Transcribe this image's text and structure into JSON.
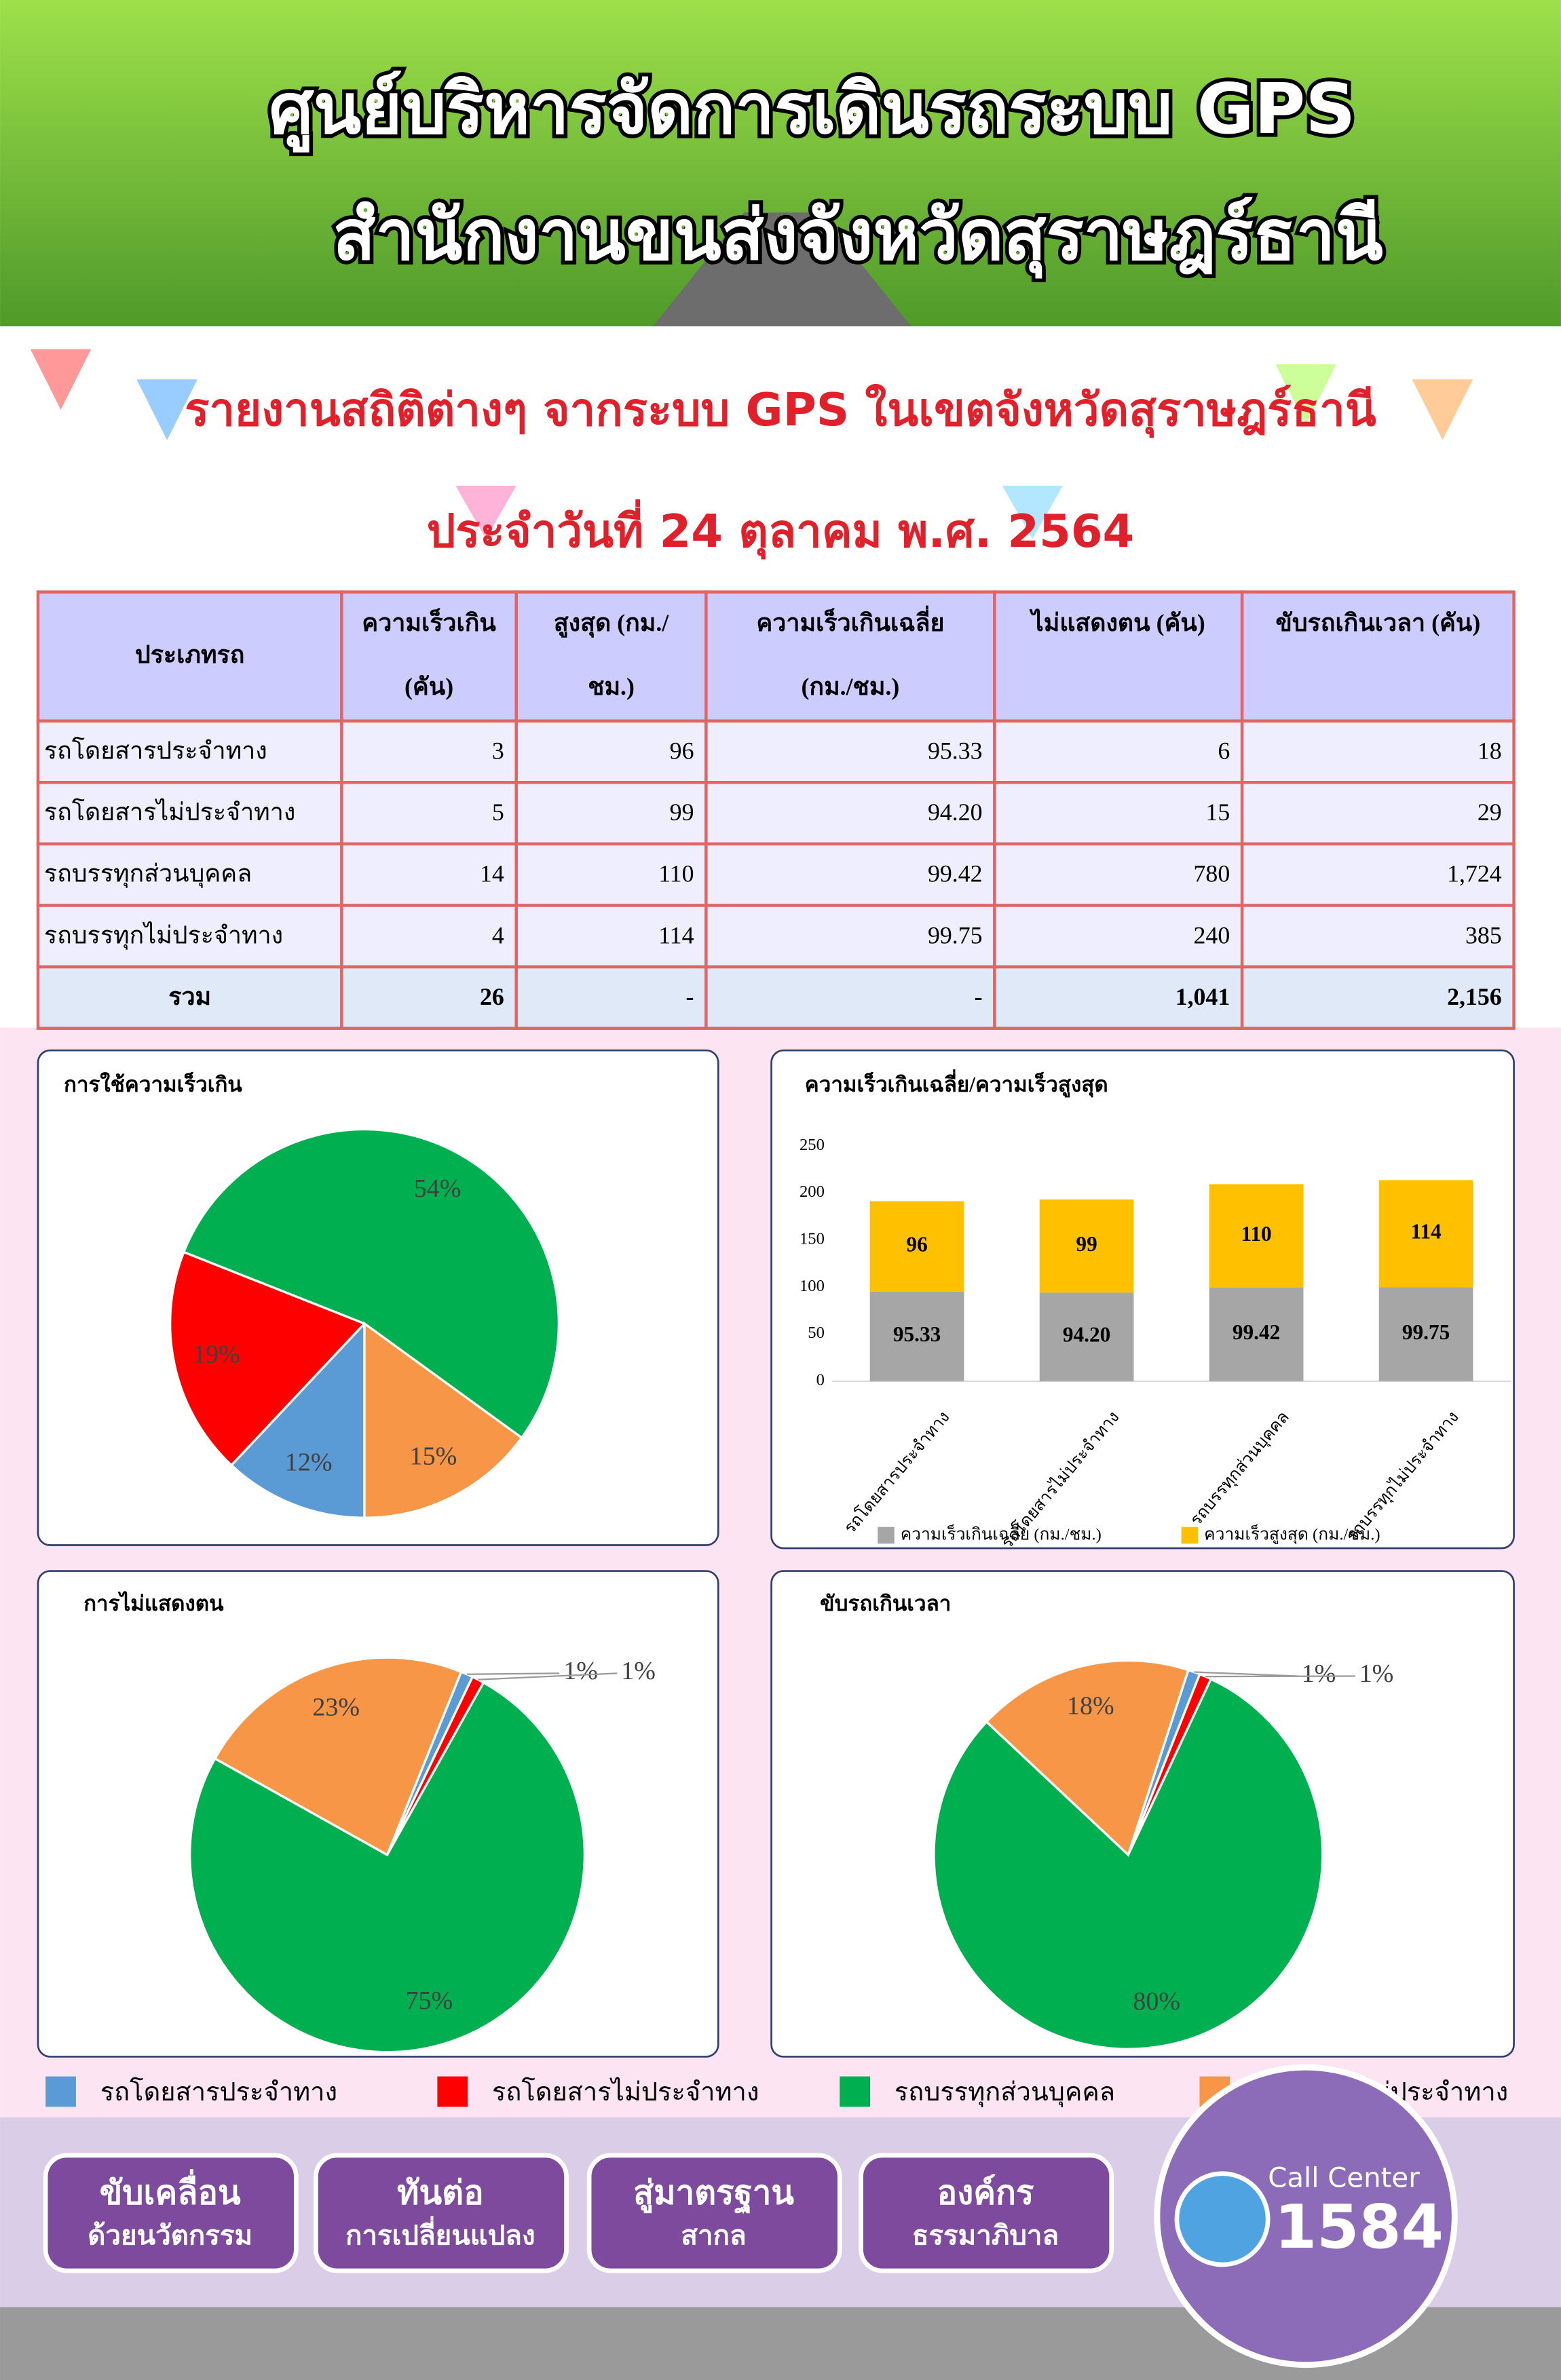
{
  "header": {
    "title_lines": [
      "ศูนย์บริหารจัดการเดินรถระบบ GPS",
      "สำนักงานขนส่งจังหวัดสุราษฎร์ธานี"
    ]
  },
  "report": {
    "title": "รายงานสถิติต่างๆ จากระบบ GPS ในเขตจังหวัดสุราษฎร์ธานี",
    "date": "ประจำวันที่ 24 ตุลาคม พ.ศ. 2564"
  },
  "table": {
    "columns": [
      [
        "ประเภทรถ"
      ],
      [
        "ความเร็วเกิน",
        "(คัน)"
      ],
      [
        "สูงสุด (กม./",
        "ชม.)"
      ],
      [
        "ความเร็วเกินเฉลี่ย",
        "(กม./ชม.)"
      ],
      [
        "ไม่แสดงตน (คัน)"
      ],
      [
        "ขับรถเกินเวลา (คัน)"
      ]
    ],
    "rows": [
      [
        "รถโดยสารประจำทาง",
        "3",
        "96",
        "95.33",
        "6",
        "18"
      ],
      [
        "รถโดยสารไม่ประจำทาง",
        "5",
        "99",
        "94.20",
        "15",
        "29"
      ],
      [
        "รถบรรทุกส่วนบุคคล",
        "14",
        "110",
        "99.42",
        "780",
        "1,724"
      ],
      [
        "รถบรรทุกไม่ประจำทาง",
        "4",
        "114",
        "99.75",
        "240",
        "385"
      ],
      [
        "รวม",
        "26",
        "-",
        "-",
        "1,041",
        "2,156"
      ]
    ]
  },
  "chart_data": [
    {
      "type": "pie",
      "title": "การใช้ความเร็วเกิน",
      "values": [
        12,
        19,
        54,
        15
      ],
      "value_labels": [
        "12%",
        "19%",
        "54%",
        "15%"
      ]
    },
    {
      "type": "bar",
      "stacked": true,
      "title": "ความเร็วเกินเฉลี่ย/ความเร็วสูงสุด",
      "categories": [
        "รถโดยสารประจำทาง",
        "รถโดยสารไม่ประจำทาง",
        "รถบรรทุกส่วนบุคคล",
        "รถบรรทุกไม่ประจำทาง"
      ],
      "series": [
        {
          "name": "ความเร็วเกินเฉลี่ย (กม./ชม.)",
          "color": "#a6a6a6",
          "values": [
            95.33,
            94.2,
            99.42,
            99.75
          ],
          "value_labels": [
            "95.33",
            "94.20",
            "99.42",
            "99.75"
          ]
        },
        {
          "name": "ความเร็วสูงสุด (กม./ชม.)",
          "color": "#ffc000",
          "values": [
            96,
            99,
            110,
            114
          ]
        }
      ],
      "ylim": [
        0,
        250
      ],
      "yticks": [
        0,
        50,
        100,
        150,
        200,
        250
      ]
    },
    {
      "type": "pie",
      "title": "การไม่แสดงตน",
      "values": [
        1,
        1,
        75,
        23
      ],
      "value_labels": [
        "1%",
        "1%",
        "75%",
        "23%"
      ]
    },
    {
      "type": "pie",
      "title": "ขับรถเกินเวลา",
      "values": [
        1,
        1,
        80,
        18
      ],
      "value_labels": [
        "1%",
        "1%",
        "80%",
        "18%"
      ]
    }
  ],
  "pie_legend": {
    "categories": [
      "รถโดยสารประจำทาง",
      "รถโดยสารไม่ประจำทาง",
      "รถบรรทุกส่วนบุคคล",
      "รถบรรทุกไม่ประจำทาง"
    ],
    "colors": [
      "#5b9bd5",
      "#ff0000",
      "#00b050",
      "#f79646"
    ]
  },
  "footer": {
    "badges": [
      [
        "ขับเคลื่อน",
        "ด้วยนวัตกรรม"
      ],
      [
        "ทันต่อ",
        "การเปลี่ยนแปลง"
      ],
      [
        "สู่มาตรฐาน",
        "สากล"
      ],
      [
        "องค์กร",
        "ธรรมาภิบาล"
      ]
    ],
    "call_center": {
      "label": "Call Center",
      "number": "1584"
    }
  }
}
